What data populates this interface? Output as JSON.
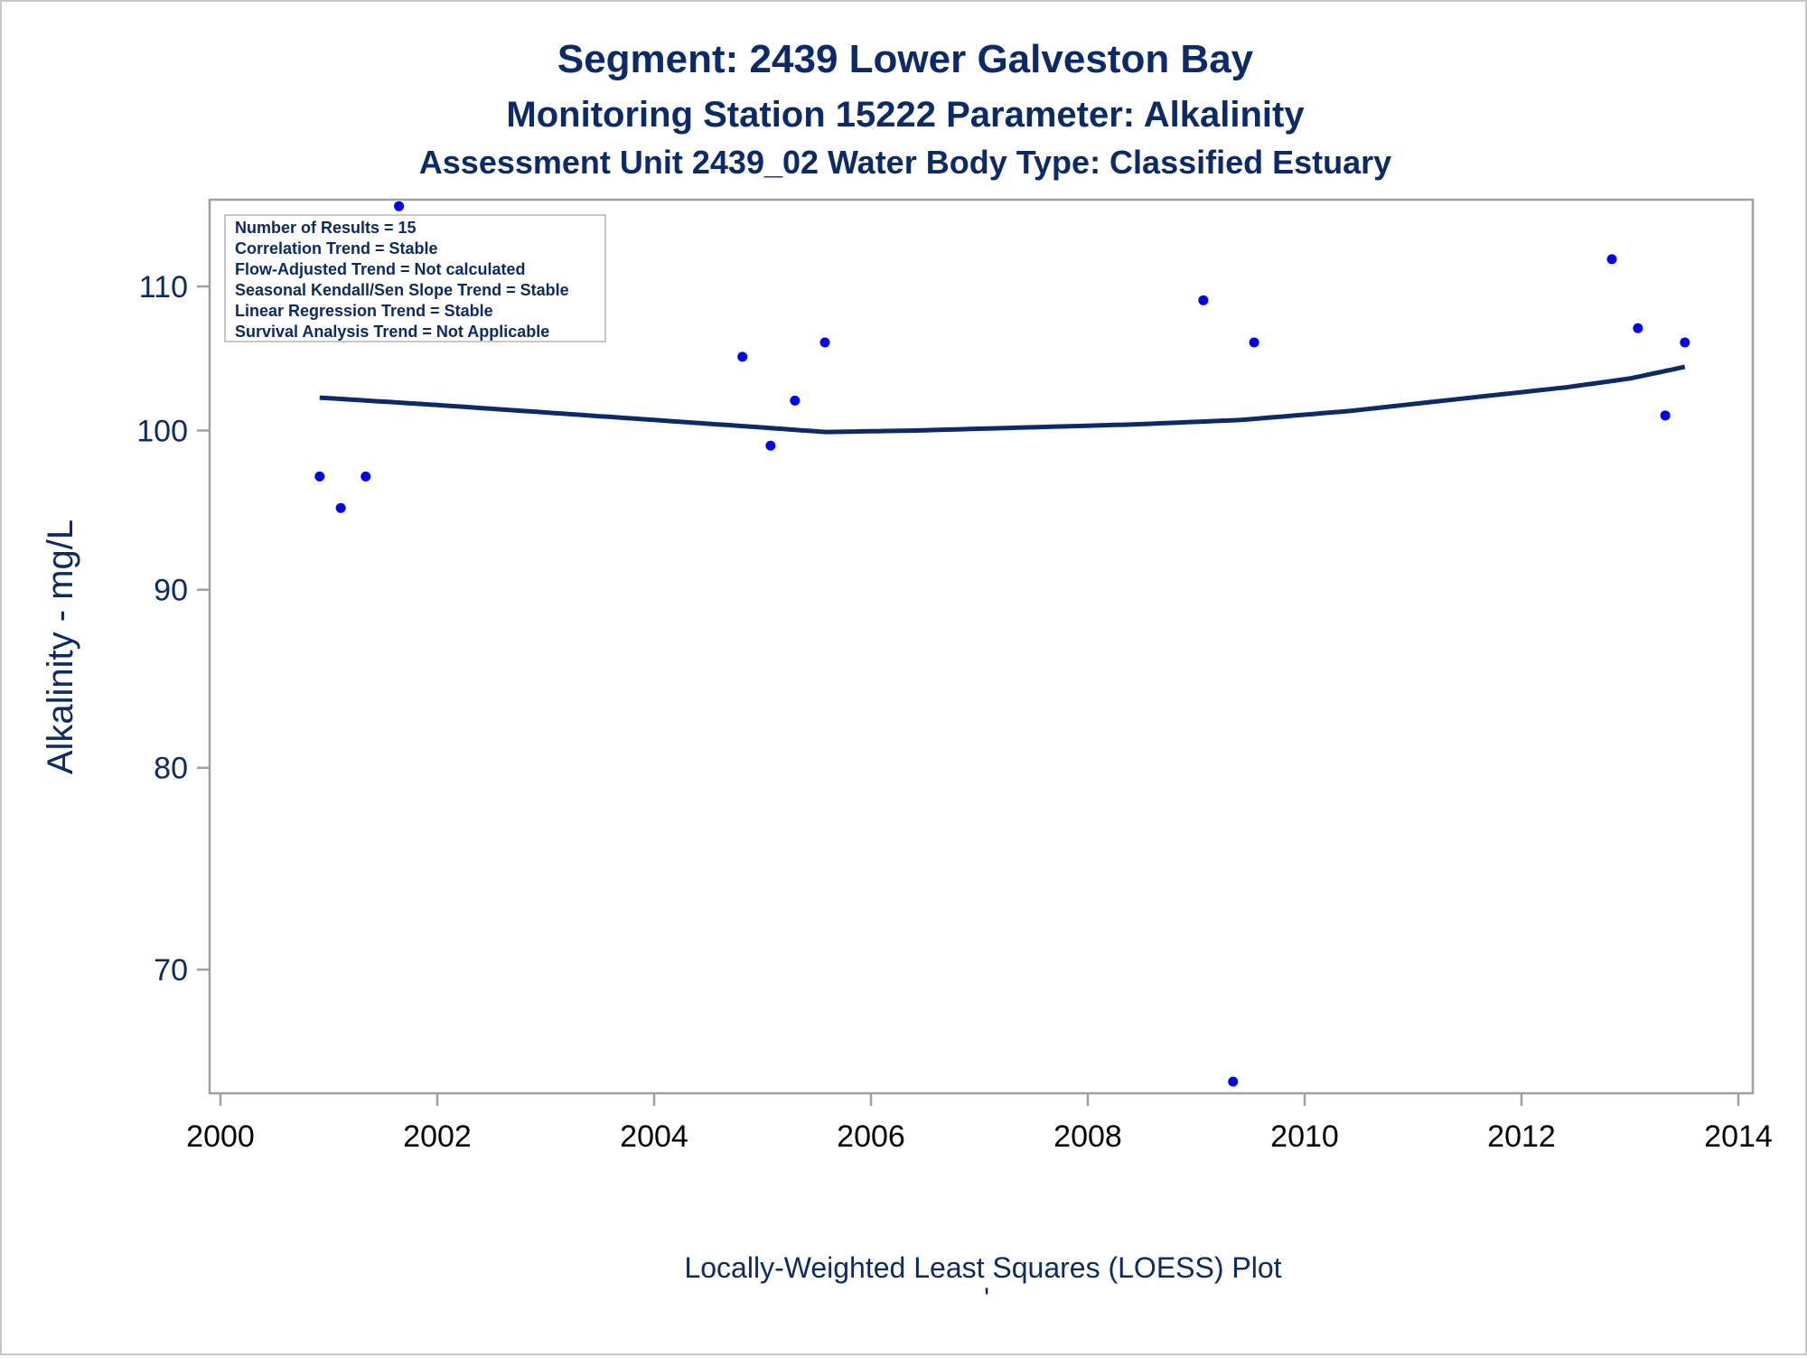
{
  "titles": {
    "line1": "Segment: 2439  Lower Galveston Bay",
    "line2": "Monitoring Station 15222 Parameter: Alkalinity",
    "line3": "Assessment Unit 2439_02   Water Body Type: Classified Estuary"
  },
  "footnote": "Locally-Weighted Least Squares (LOESS) Plot",
  "footnote_mark": "'",
  "stats_box": [
    "Number of Results = 15",
    "Correlation Trend = Stable",
    "Flow-Adjusted Trend = Not calculated",
    "Seasonal Kendall/Sen Slope Trend = Stable",
    "Linear Regression Trend = Stable",
    "Survival Analysis Trend = Not Applicable"
  ],
  "colors": {
    "points": "#0000ff",
    "loess_line": "#0b2a6b",
    "text": "#0b2a6b",
    "frame": "#a0a0a0"
  },
  "chart_data": {
    "type": "scatter",
    "title": "Segment: 2439  Lower Galveston Bay",
    "xlabel": "",
    "ylabel": "Alkalinity - mg/L",
    "y_scale": "log",
    "xlim": [
      2000,
      2014
    ],
    "ylim": [
      64.5,
      116.5
    ],
    "x_ticks": [
      2000,
      2002,
      2004,
      2006,
      2008,
      2010,
      2012,
      2014
    ],
    "y_ticks": [
      70,
      80,
      90,
      100,
      110
    ],
    "grid": false,
    "legend": "top-left",
    "series": [
      {
        "kind": "points",
        "x": [
          "2000-12-01",
          "2001-02-10",
          "2001-05-05",
          "2001-08-25",
          "2004-10-25",
          "2005-01-28",
          "2005-04-20",
          "2005-07-30",
          "2009-01-25",
          "2009-05-05",
          "2009-07-15",
          "2012-11-01",
          "2013-01-28",
          "2013-04-30",
          "2013-07-05"
        ],
        "y": [
          97,
          95,
          97,
          116,
          105,
          99,
          102,
          106,
          109,
          65,
          106,
          112,
          107,
          101,
          106
        ]
      },
      {
        "kind": "loess",
        "x": [
          "2000-12-01",
          "2002-01-01",
          "2003-01-01",
          "2004-01-01",
          "2005-01-01",
          "2005-08-01",
          "2006-06-01",
          "2007-06-01",
          "2008-06-01",
          "2009-06-01",
          "2010-06-01",
          "2011-06-01",
          "2012-06-01",
          "2013-01-01",
          "2013-07-05"
        ],
        "y": [
          102.2,
          101.7,
          101.2,
          100.7,
          100.2,
          99.9,
          100.0,
          100.2,
          100.4,
          100.7,
          101.3,
          102.1,
          102.9,
          103.5,
          104.3
        ]
      }
    ]
  }
}
